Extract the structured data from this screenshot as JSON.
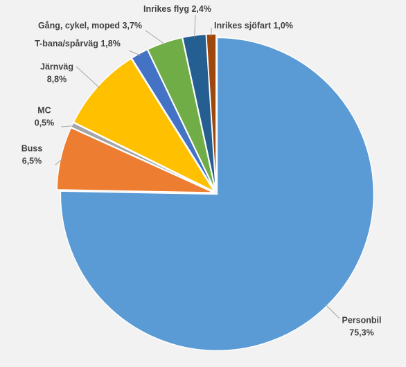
{
  "chart_data": {
    "type": "pie",
    "categories": [
      "Personbil",
      "Buss",
      "MC",
      "Järnväg",
      "T-bana/spårväg",
      "Gång, cykel, moped",
      "Inrikes flyg",
      "Inrikes sjöfart"
    ],
    "values": [
      75.3,
      6.5,
      0.5,
      8.8,
      1.8,
      3.7,
      2.4,
      1.0
    ],
    "value_labels": [
      "75,3%",
      "6,5%",
      "0,5%",
      "8,8%",
      "1,8%",
      "3,7%",
      "2,4%",
      "1,0%"
    ],
    "colors": [
      "#5b9bd5",
      "#ed7d31",
      "#a5a5a5",
      "#ffc000",
      "#4472c4",
      "#70ad47",
      "#255e91",
      "#9e480e"
    ]
  }
}
